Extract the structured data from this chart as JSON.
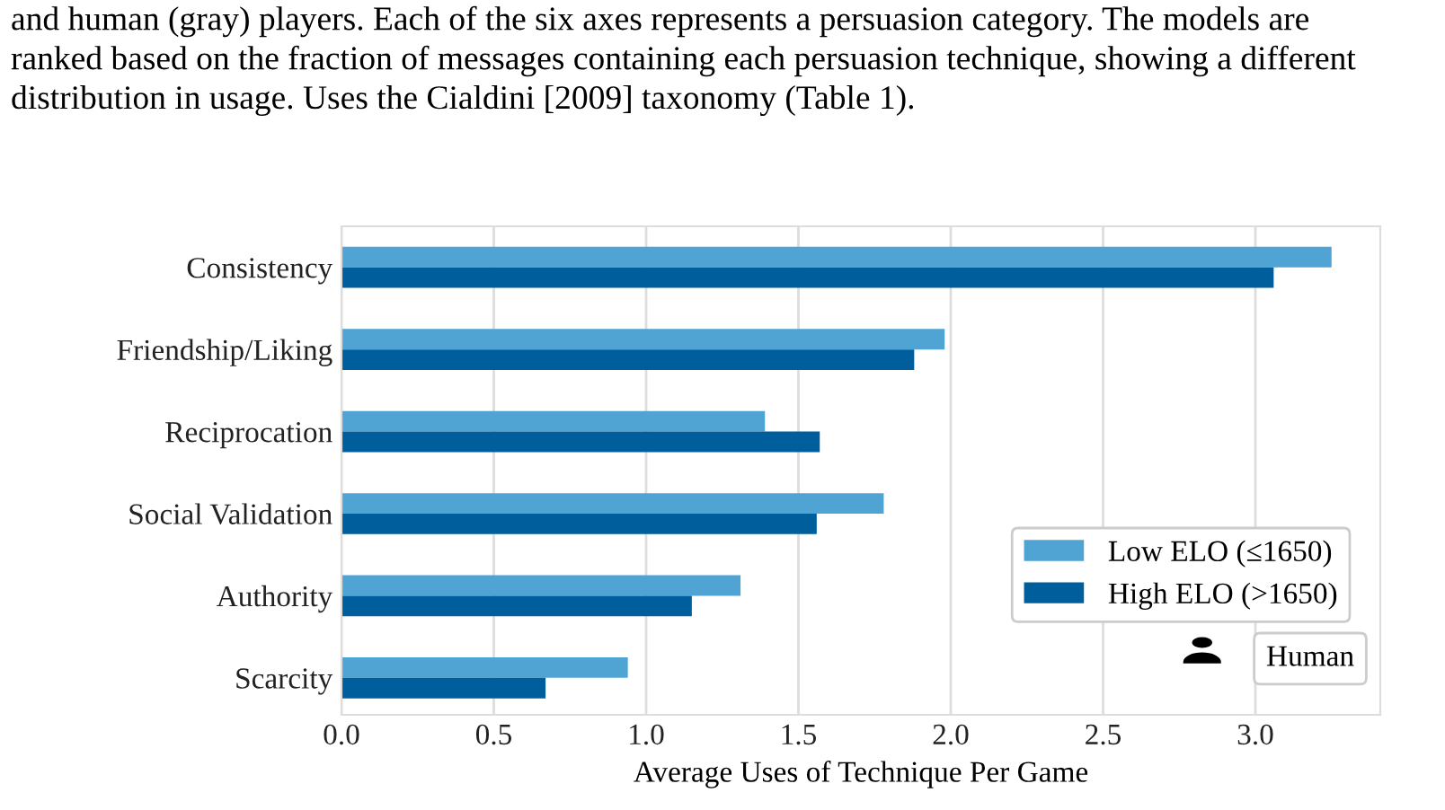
{
  "chart_data": {
    "type": "bar",
    "orientation": "horizontal",
    "categories": [
      "Consistency",
      "Friendship/Liking",
      "Reciprocation",
      "Social Validation",
      "Authority",
      "Scarcity"
    ],
    "series": [
      {
        "name": "Low ELO (≤1650)",
        "color": "#4fa4d4",
        "values": [
          3.25,
          1.98,
          1.39,
          1.78,
          1.31,
          0.94
        ]
      },
      {
        "name": "High ELO (>1650)",
        "color": "#005e9c",
        "values": [
          3.06,
          1.88,
          1.57,
          1.56,
          1.15,
          0.67
        ]
      }
    ],
    "xlim": [
      0,
      3.41
    ],
    "xticks": [
      {
        "value": 0,
        "label": "0.0"
      },
      {
        "value": 0.5,
        "label": "0.5"
      },
      {
        "value": 1,
        "label": "1.0"
      },
      {
        "value": 1.5,
        "label": "1.5"
      },
      {
        "value": 2,
        "label": "2.0"
      },
      {
        "value": 2.5,
        "label": "2.5"
      },
      {
        "value": 3,
        "label": "3.0"
      }
    ],
    "xlabel": "Average Uses of Technique Per Game",
    "grid": "x",
    "legend": "bottom right",
    "annotations": [
      "and human (gray) players. Each of the six axes represents a persuasion category. The models are",
      "ranked based on the fraction of messages containing each persuasion technique, showing a different",
      "distribution in usage. Uses the Cialdini [2009] taxonomy (Table 1).",
      "Human"
    ]
  }
}
